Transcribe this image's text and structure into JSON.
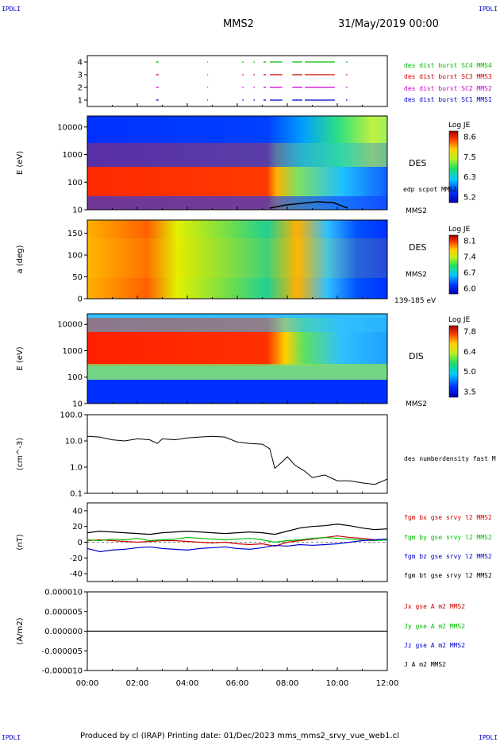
{
  "header": {
    "corner_left": "IPDLI",
    "corner_right": "IPDLI",
    "spacecraft": "MMS2",
    "datetime": "31/May/2019 00:00"
  },
  "footer": {
    "text": "Produced by cl (IRAP)   Printing date: 01/Dec/2023   mms_mms2_srvy_vue_web1.cl",
    "corner_left": "IPDLI",
    "corner_right": "IPDLI"
  },
  "colors": {
    "sc1": "#0000cc",
    "sc2": "#cc00cc",
    "sc3": "#cc0000",
    "sc4": "#00bb00",
    "bx": "#cc0000",
    "by": "#00bb00",
    "bz": "#0000cc",
    "bt": "#000000"
  },
  "chart_data": [
    {
      "type": "scatter",
      "panel": "burst",
      "ylim": [
        0.5,
        4.5
      ],
      "yticks": [
        "1",
        "2",
        "3",
        "4"
      ],
      "legend": [
        "des dist burst SC1 MMS1",
        "des dist burst SC2 MMS2",
        "des dist burst SC3 MMS3",
        "des dist burst SC4 MMS4"
      ],
      "xlim_hours": [
        0,
        12
      ],
      "intervals_hours": [
        [
          2.75,
          2.85
        ],
        [
          4.8,
          4.83
        ],
        [
          6.2,
          6.25
        ],
        [
          6.65,
          6.7
        ],
        [
          7.05,
          7.15
        ],
        [
          7.3,
          7.8
        ],
        [
          8.2,
          8.6
        ],
        [
          8.7,
          9.9
        ],
        [
          10.35,
          10.4
        ]
      ]
    },
    {
      "type": "heatmap",
      "panel": "des-energy",
      "ylabel": "E (eV)",
      "scale": "log",
      "ylim": [
        10,
        25000
      ],
      "yticks": [
        "10",
        "100",
        "1000",
        "10000"
      ],
      "right_label": "DES",
      "right_label2": "MMS2",
      "overlay_label": "edp scpot MMS2",
      "colorbar": {
        "title": "Log JE",
        "ticks": [
          "8.6",
          "7.5",
          "6.3",
          "5.2"
        ],
        "range": [
          5.2,
          8.6
        ]
      }
    },
    {
      "type": "heatmap",
      "panel": "des-pitch",
      "ylabel": "a (deg)",
      "ylim": [
        0,
        180
      ],
      "yticks": [
        "0",
        "50",
        "100",
        "150"
      ],
      "right_label": "DES",
      "right_label2": "MMS2",
      "energy_label": "139-185 eV",
      "colorbar": {
        "title": "Log JE",
        "ticks": [
          "8.1",
          "7.4",
          "6.7",
          "6.0"
        ],
        "range": [
          6.0,
          8.1
        ]
      }
    },
    {
      "type": "heatmap",
      "panel": "dis-energy",
      "ylabel": "E (eV)",
      "scale": "log",
      "ylim": [
        10,
        25000
      ],
      "yticks": [
        "10",
        "100",
        "1000",
        "10000"
      ],
      "right_label": "DIS",
      "right_label2": "MMS2",
      "colorbar": {
        "title": "Log JE",
        "ticks": [
          "7.8",
          "6.4",
          "5.0",
          "3.5"
        ],
        "range": [
          3.5,
          7.8
        ]
      }
    },
    {
      "type": "line",
      "panel": "density",
      "ylabel": "(cm^-3)",
      "scale": "log",
      "ylim": [
        0.1,
        100
      ],
      "yticks": [
        "0.1",
        "1.0",
        "10.0",
        "100.0"
      ],
      "legend": [
        "des numberdensity fast M"
      ],
      "x_hours": [
        0,
        0.5,
        1,
        1.5,
        2,
        2.5,
        2.8,
        3,
        3.5,
        4,
        4.5,
        5,
        5.5,
        6,
        6.5,
        7,
        7.3,
        7.5,
        7.8,
        8,
        8.3,
        8.7,
        9,
        9.5,
        10,
        10.5,
        11,
        11.5,
        12
      ],
      "series": [
        {
          "values": [
            15,
            14,
            11,
            10,
            12,
            11,
            8,
            12,
            11,
            13,
            14,
            15,
            14,
            9,
            8,
            7.5,
            5,
            0.9,
            1.6,
            2.5,
            1.2,
            0.7,
            0.4,
            0.5,
            0.3,
            0.3,
            0.25,
            0.22,
            0.35
          ]
        }
      ]
    },
    {
      "type": "line",
      "panel": "fgm",
      "ylabel": "(nT)",
      "ylim": [
        -50,
        50
      ],
      "yticks": [
        "-40",
        "-20",
        "0",
        "20",
        "40"
      ],
      "legend": [
        "fgm bx gse srvy l2 MMS2",
        "fgm by gse srvy l2 MMS2",
        "fgm bz gse srvy l2 MMS2",
        "fgm bt gse srvy l2 MMS2"
      ],
      "x_hours": [
        0,
        0.5,
        1,
        1.5,
        2,
        2.5,
        3,
        3.5,
        4,
        4.5,
        5,
        5.5,
        6,
        6.5,
        7,
        7.5,
        8,
        8.5,
        9,
        9.5,
        10,
        10.5,
        11,
        11.5,
        12
      ],
      "series": [
        {
          "name": "fgm bx gse srvy l2 MMS2",
          "values": [
            2,
            3,
            2,
            1,
            0,
            1,
            2,
            2,
            1,
            0,
            -1,
            0,
            -2,
            -3,
            -2,
            -5,
            0,
            2,
            4,
            6,
            8,
            6,
            5,
            3,
            4
          ]
        },
        {
          "name": "fgm by gse srvy l2 MMS2",
          "values": [
            3,
            2,
            4,
            3,
            5,
            2,
            3,
            4,
            6,
            5,
            4,
            3,
            4,
            5,
            3,
            0,
            2,
            3,
            5,
            6,
            5,
            4,
            3,
            2,
            3
          ]
        },
        {
          "name": "fgm bz gse srvy l2 MMS2",
          "values": [
            -8,
            -12,
            -10,
            -9,
            -7,
            -6,
            -8,
            -9,
            -10,
            -8,
            -7,
            -6,
            -8,
            -9,
            -7,
            -4,
            -5,
            -3,
            -4,
            -3,
            -2,
            0,
            2,
            3,
            4
          ]
        },
        {
          "name": "fgm bt gse srvy l2 MMS2",
          "values": [
            12,
            14,
            13,
            12,
            11,
            10,
            12,
            13,
            14,
            13,
            12,
            11,
            12,
            13,
            12,
            10,
            14,
            18,
            20,
            21,
            23,
            21,
            18,
            16,
            17
          ]
        }
      ]
    },
    {
      "type": "line",
      "panel": "current",
      "ylabel": "(A/m2)",
      "ylim": [
        -1e-05,
        1e-05
      ],
      "yticks": [
        "-0.000010",
        "-0.000005",
        "0.000000",
        "0.000005",
        "0.000010"
      ],
      "legend": [
        "Jx gse A m2 MMS2",
        "Jy gse A m2 MMS2",
        "Jz gse A m2 MMS2",
        "J A m2 MMS2"
      ],
      "x_hours": [
        0,
        12
      ],
      "series": [
        {
          "values": [
            0,
            0
          ]
        }
      ]
    }
  ],
  "xaxis": {
    "ticks": [
      "00:00",
      "02:00",
      "04:00",
      "06:00",
      "08:00",
      "10:00",
      "12:00"
    ],
    "range_hours": [
      0,
      12
    ]
  }
}
